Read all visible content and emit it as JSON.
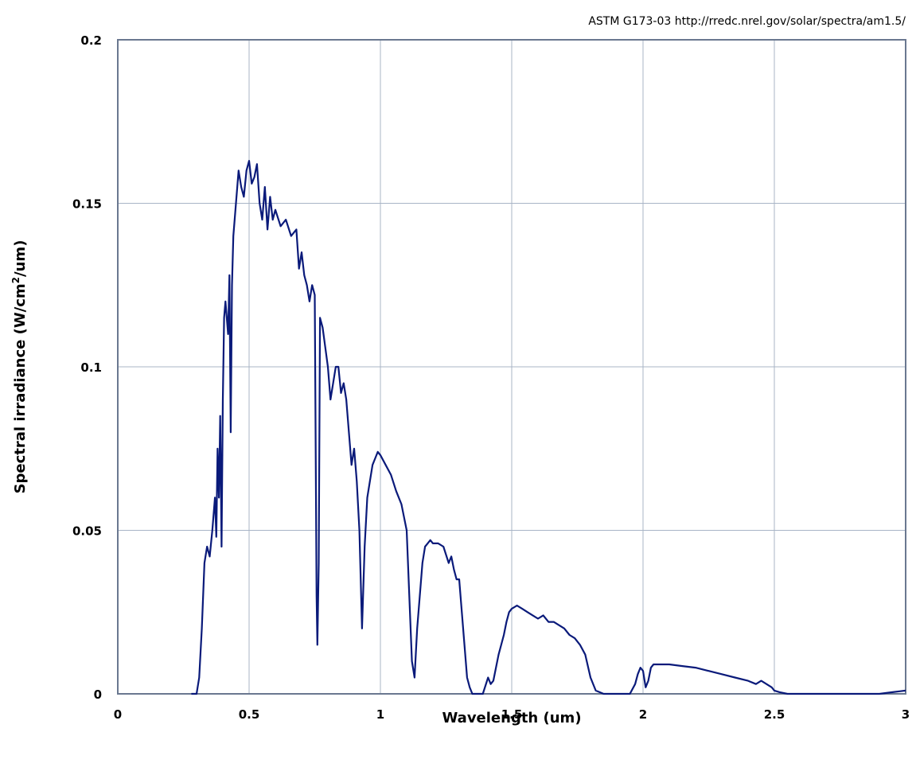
{
  "chart_data": {
    "type": "line",
    "annotation": "ASTM G173-03 http://rredc.nrel.gov/solar/spectra/am1.5/",
    "xlabel": "Wavelength (um)",
    "ylabel_main": "Spectral irradiance (W/cm",
    "ylabel_sup": "2",
    "ylabel_tail": "/um)",
    "xlim": [
      0,
      3
    ],
    "ylim": [
      0,
      0.2
    ],
    "x_ticks": [
      0,
      0.5,
      1,
      1.5,
      2,
      2.5,
      3
    ],
    "x_tick_labels": [
      "0",
      "0.5",
      "1",
      "1.5",
      "2",
      "2.5",
      "3"
    ],
    "y_ticks": [
      0,
      0.05,
      0.1,
      0.15,
      0.2
    ],
    "y_tick_labels": [
      "0",
      "0.05",
      "0.1",
      "0.15",
      "0.2"
    ],
    "grid": true,
    "series": [
      {
        "color": "#0a1a7a",
        "x": [
          0.28,
          0.3,
          0.31,
          0.32,
          0.33,
          0.34,
          0.35,
          0.36,
          0.37,
          0.375,
          0.38,
          0.385,
          0.39,
          0.395,
          0.4,
          0.405,
          0.41,
          0.42,
          0.425,
          0.43,
          0.435,
          0.44,
          0.45,
          0.46,
          0.47,
          0.48,
          0.49,
          0.5,
          0.51,
          0.52,
          0.53,
          0.54,
          0.55,
          0.56,
          0.57,
          0.58,
          0.59,
          0.6,
          0.62,
          0.64,
          0.66,
          0.68,
          0.69,
          0.7,
          0.71,
          0.72,
          0.73,
          0.74,
          0.75,
          0.757,
          0.76,
          0.765,
          0.77,
          0.78,
          0.8,
          0.81,
          0.82,
          0.83,
          0.84,
          0.85,
          0.86,
          0.87,
          0.88,
          0.89,
          0.9,
          0.91,
          0.92,
          0.93,
          0.94,
          0.95,
          0.96,
          0.97,
          0.98,
          0.99,
          1.0,
          1.02,
          1.04,
          1.06,
          1.08,
          1.1,
          1.11,
          1.12,
          1.13,
          1.14,
          1.15,
          1.16,
          1.17,
          1.18,
          1.19,
          1.2,
          1.22,
          1.24,
          1.26,
          1.27,
          1.28,
          1.29,
          1.3,
          1.31,
          1.32,
          1.33,
          1.34,
          1.35,
          1.37,
          1.39,
          1.41,
          1.42,
          1.43,
          1.44,
          1.45,
          1.46,
          1.47,
          1.48,
          1.49,
          1.5,
          1.52,
          1.54,
          1.56,
          1.58,
          1.6,
          1.62,
          1.64,
          1.66,
          1.68,
          1.7,
          1.72,
          1.74,
          1.76,
          1.78,
          1.8,
          1.82,
          1.85,
          1.9,
          1.95,
          1.97,
          1.98,
          1.99,
          2.0,
          2.01,
          2.02,
          2.03,
          2.04,
          2.05,
          2.07,
          2.1,
          2.15,
          2.2,
          2.25,
          2.3,
          2.35,
          2.4,
          2.43,
          2.45,
          2.47,
          2.49,
          2.5,
          2.52,
          2.55,
          2.6,
          2.7,
          2.8,
          2.9,
          2.95,
          2.98,
          3.0
        ],
        "y": [
          0.0,
          0.0,
          0.005,
          0.02,
          0.04,
          0.045,
          0.042,
          0.05,
          0.06,
          0.048,
          0.075,
          0.06,
          0.085,
          0.045,
          0.09,
          0.115,
          0.12,
          0.11,
          0.128,
          0.08,
          0.125,
          0.14,
          0.15,
          0.16,
          0.155,
          0.152,
          0.16,
          0.163,
          0.156,
          0.158,
          0.162,
          0.15,
          0.145,
          0.155,
          0.142,
          0.152,
          0.145,
          0.148,
          0.143,
          0.145,
          0.14,
          0.142,
          0.13,
          0.135,
          0.128,
          0.125,
          0.12,
          0.125,
          0.122,
          0.03,
          0.015,
          0.04,
          0.115,
          0.112,
          0.1,
          0.09,
          0.095,
          0.1,
          0.1,
          0.092,
          0.095,
          0.09,
          0.08,
          0.07,
          0.075,
          0.065,
          0.05,
          0.02,
          0.045,
          0.06,
          0.065,
          0.07,
          0.072,
          0.074,
          0.073,
          0.07,
          0.067,
          0.062,
          0.058,
          0.05,
          0.03,
          0.01,
          0.005,
          0.02,
          0.03,
          0.04,
          0.045,
          0.046,
          0.047,
          0.046,
          0.046,
          0.045,
          0.04,
          0.042,
          0.038,
          0.035,
          0.035,
          0.025,
          0.015,
          0.005,
          0.002,
          0.0,
          0.0,
          0.0,
          0.005,
          0.003,
          0.004,
          0.008,
          0.012,
          0.015,
          0.018,
          0.022,
          0.025,
          0.026,
          0.027,
          0.026,
          0.025,
          0.024,
          0.023,
          0.024,
          0.022,
          0.022,
          0.021,
          0.02,
          0.018,
          0.017,
          0.015,
          0.012,
          0.005,
          0.001,
          0.0,
          0.0,
          0.0,
          0.003,
          0.006,
          0.008,
          0.007,
          0.002,
          0.004,
          0.008,
          0.009,
          0.009,
          0.009,
          0.009,
          0.0085,
          0.008,
          0.007,
          0.006,
          0.005,
          0.004,
          0.003,
          0.004,
          0.003,
          0.002,
          0.001,
          0.0005,
          0.0,
          0.0,
          0.0,
          0.0,
          0.0,
          0.0005,
          0.0008,
          0.001
        ]
      }
    ]
  }
}
